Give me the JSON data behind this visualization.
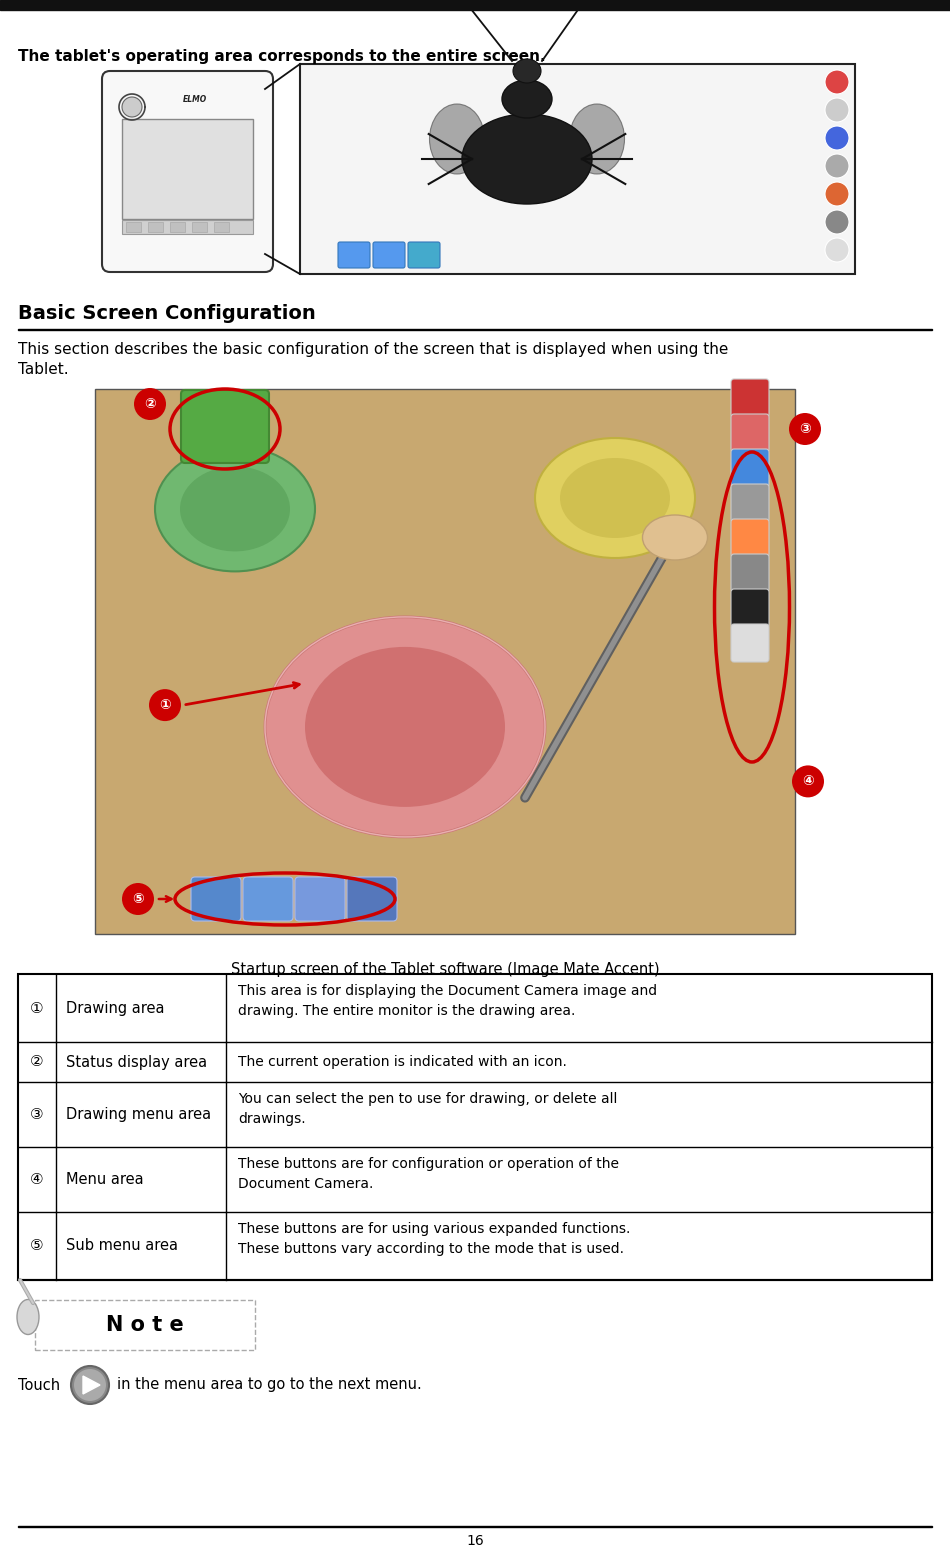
{
  "page_num": "16",
  "top_text": "The tablet's operating area corresponds to the entire screen.",
  "section_title": "Basic Screen Configuration",
  "section_intro_line1": "This section describes the basic configuration of the screen that is displayed when using the",
  "section_intro_line2": "Tablet.",
  "caption": "Startup screen of the Tablet software (Image Mate Accent)",
  "table_rows": [
    {
      "num": "①",
      "label": "Drawing area",
      "desc_line1": "This area is for displaying the Document Camera image and",
      "desc_line2": "drawing. The entire monitor is the drawing area."
    },
    {
      "num": "②",
      "label": "Status display area",
      "desc_line1": "The current operation is indicated with an icon.",
      "desc_line2": ""
    },
    {
      "num": "③",
      "label": "Drawing menu area",
      "desc_line1": "You can select the pen to use for drawing, or delete all",
      "desc_line2": "drawings."
    },
    {
      "num": "④",
      "label": "Menu area",
      "desc_line1": "These buttons are for configuration or operation of the",
      "desc_line2": "Document Camera."
    },
    {
      "num": "⑤",
      "label": "Sub menu area",
      "desc_line1": "These buttons are for using various expanded functions.",
      "desc_line2": "These buttons vary according to the mode that is used."
    }
  ],
  "note_text": "N o t e",
  "touch_text": "Touch",
  "touch_desc": "in the menu area to go to the next menu.",
  "bg_color": "#ffffff",
  "text_color": "#000000",
  "red_color": "#cc0000"
}
